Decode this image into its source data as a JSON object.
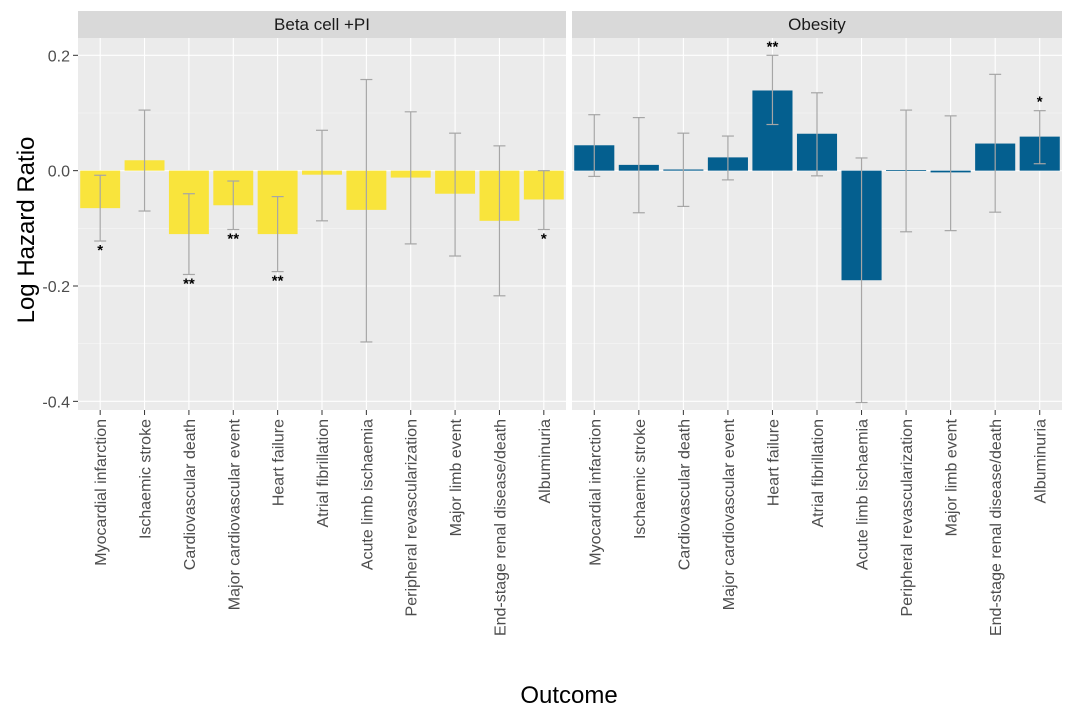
{
  "chart_data": {
    "type": "bar",
    "xlabel": "Outcome",
    "ylabel": "Log Hazard Ratio",
    "ylim": [
      -0.415,
      0.23
    ],
    "yticks": [
      0.2,
      0.0,
      -0.2,
      -0.4
    ],
    "ytick_labels": [
      "0.2",
      "0.0",
      "-0.2",
      "-0.4"
    ],
    "grid": true,
    "error_bars": true,
    "categories": [
      "Myocardial infarction",
      "Ischaemic stroke",
      "Cardiovascular death",
      "Major cardiovascular event",
      "Heart failure",
      "Atrial fibrillation",
      "Acute limb ischaemia",
      "Peripheral revascularization",
      "Major limb event",
      "End-stage renal disease/death",
      "Albuminuria"
    ],
    "panels": [
      {
        "name": "Beta cell +PI",
        "color": "#F9E43C",
        "values": [
          -0.065,
          0.018,
          -0.11,
          -0.06,
          -0.11,
          -0.007,
          -0.068,
          -0.012,
          -0.04,
          -0.087,
          -0.05
        ],
        "lower": [
          -0.122,
          -0.07,
          -0.18,
          -0.102,
          -0.175,
          -0.087,
          -0.297,
          -0.127,
          -0.148,
          -0.217,
          -0.102
        ],
        "upper": [
          -0.008,
          0.105,
          -0.04,
          -0.018,
          -0.045,
          0.07,
          0.158,
          0.102,
          0.065,
          0.043,
          0.0
        ],
        "significance": [
          "*",
          "",
          "**",
          "**",
          "**",
          "",
          "",
          "",
          "",
          "",
          "*"
        ]
      },
      {
        "name": "Obesity",
        "color": "#045F8F",
        "values": [
          0.044,
          0.01,
          0.002,
          0.023,
          0.139,
          0.064,
          -0.19,
          0.001,
          -0.003,
          0.047,
          0.059
        ],
        "lower": [
          -0.01,
          -0.073,
          -0.062,
          -0.016,
          0.08,
          -0.009,
          -0.402,
          -0.106,
          -0.104,
          -0.072,
          0.012
        ],
        "upper": [
          0.097,
          0.092,
          0.065,
          0.06,
          0.2,
          0.135,
          0.022,
          0.105,
          0.095,
          0.167,
          0.104
        ],
        "significance": [
          "",
          "",
          "",
          "",
          "**",
          "",
          "",
          "",
          "",
          "",
          "*"
        ]
      }
    ]
  }
}
